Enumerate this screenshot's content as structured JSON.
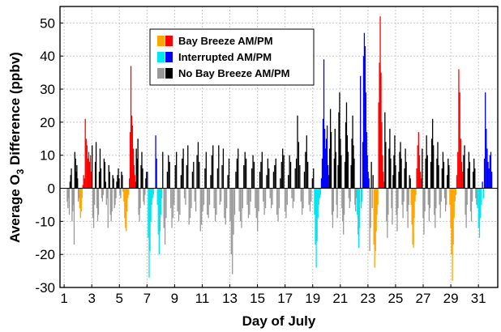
{
  "chart_data": {
    "type": "bar",
    "xlabel": "Day of July",
    "ylabel_parts": [
      "Average O",
      "3",
      " Difference (ppbv)"
    ],
    "xlim": [
      0.7,
      32.4
    ],
    "ylim": [
      -30,
      55
    ],
    "grid": true,
    "legend_position": "top-center",
    "x_ticks": [
      1,
      3,
      5,
      7,
      9,
      11,
      13,
      15,
      17,
      19,
      21,
      23,
      25,
      27,
      29,
      31
    ],
    "y_ticks": [
      -30,
      -20,
      -10,
      0,
      10,
      20,
      30,
      40,
      50
    ],
    "legend": [
      {
        "label": "Bay Breeze AM/PM",
        "series_am": "bay_am",
        "series_pm": "bay_pm"
      },
      {
        "label": "Interrupted AM/PM",
        "series_am": "int_am",
        "series_pm": "int_pm"
      },
      {
        "label": "No Bay Breeze AM/PM",
        "series_am": "no_am",
        "series_pm": "no_pm"
      }
    ],
    "colors": {
      "bay_am": "#ffa500",
      "bay_pm": "#ff0000",
      "int_am": "#00e5ee",
      "int_pm": "#0000ff",
      "no_am": "#999999",
      "no_pm": "#000000"
    },
    "hourly_segments": [
      {
        "series": "no",
        "x_start": 1.2,
        "x_end": 2.1,
        "values": [
          -4,
          -6,
          -3,
          -8,
          2,
          4,
          6,
          -10,
          -7,
          -5,
          -17,
          11,
          9,
          5,
          7,
          3,
          -4,
          -3
        ]
      },
      {
        "series": "bay",
        "x_start": 2.1,
        "x_end": 2.5,
        "values": [
          -6,
          -9,
          -7,
          -3,
          1,
          4,
          3
        ]
      },
      {
        "series": "bay",
        "x_start": 2.5,
        "x_end": 3.0,
        "values": [
          21,
          15,
          13,
          9,
          11,
          8,
          10,
          5
        ]
      },
      {
        "series": "no",
        "x_start": 3.0,
        "x_end": 5.3,
        "values": [
          13,
          -9,
          -12,
          -5,
          8,
          14,
          -6,
          -10,
          -8,
          5,
          12,
          6,
          -3,
          -4,
          -2,
          9,
          8,
          2,
          -5,
          -3,
          -12,
          7,
          5,
          -8,
          -10,
          -7,
          4,
          3,
          -6,
          -5,
          -3,
          2,
          4,
          6,
          3,
          -2,
          -3,
          5,
          4,
          -1
        ]
      },
      {
        "series": "bay",
        "x_start": 5.3,
        "x_end": 5.7,
        "values": [
          -4,
          -9,
          -12,
          -13,
          -7,
          -3,
          -2
        ]
      },
      {
        "series": "bay",
        "x_start": 5.7,
        "x_end": 6.2,
        "values": [
          3,
          17,
          37,
          22,
          19,
          12,
          7,
          4,
          2
        ]
      },
      {
        "series": "no",
        "x_start": 6.2,
        "x_end": 7.0,
        "values": [
          12,
          9,
          15,
          -8,
          -10,
          -6,
          7,
          11,
          6,
          -4,
          -5,
          -2,
          3,
          5
        ]
      },
      {
        "series": "int",
        "x_start": 7.0,
        "x_end": 7.5,
        "values": [
          5,
          -15,
          -27,
          -19,
          -10,
          -5,
          -3,
          -2
        ]
      },
      {
        "series": "int",
        "x_start": 7.6,
        "x_end": 8.1,
        "values": [
          16,
          9,
          -5,
          -14,
          -20,
          -13,
          -8,
          -3
        ]
      },
      {
        "series": "no",
        "x_start": 8.1,
        "x_end": 19.1,
        "values": [
          11,
          -12,
          -17,
          -9,
          5,
          10,
          8,
          -6,
          -12,
          -9,
          -5,
          7,
          11,
          -7,
          -10,
          -8,
          4,
          9,
          12,
          -3,
          -5,
          7,
          13,
          -11,
          -9,
          -6,
          5,
          8,
          -4,
          -7,
          10,
          14,
          8,
          -13,
          -11,
          -7,
          -5,
          6,
          11,
          -8,
          -9,
          -5,
          4,
          10,
          13,
          -6,
          -10,
          -8,
          6,
          13,
          -5,
          -4,
          7,
          12,
          -9,
          -11,
          -6,
          4,
          9,
          -10,
          -20,
          -26,
          -14,
          -8,
          5,
          9,
          12,
          -7,
          -10,
          -12,
          -6,
          7,
          11,
          9,
          -5,
          -9,
          -8,
          -4,
          6,
          10,
          8,
          -6,
          -9,
          -13,
          -7,
          5,
          8,
          11,
          -4,
          -8,
          -6,
          4,
          9,
          6,
          -3,
          -6,
          -5,
          5,
          7,
          9,
          -8,
          -10,
          -6,
          3,
          8,
          12,
          10,
          -7,
          -9,
          -5,
          4,
          10,
          8,
          -3,
          -6,
          -4,
          6,
          9,
          22,
          14,
          7,
          -4,
          -8,
          -6,
          5,
          11,
          16,
          8,
          -5,
          -7,
          -4,
          3,
          6
        ]
      },
      {
        "series": "int",
        "x_start": 19.1,
        "x_end": 19.6,
        "values": [
          -8,
          -17,
          -24,
          -16,
          -9,
          -5,
          -3,
          -2
        ]
      },
      {
        "series": "int",
        "x_start": 19.6,
        "x_end": 20.2,
        "values": [
          3,
          9,
          21,
          39,
          18,
          12,
          15,
          19,
          7,
          4
        ]
      },
      {
        "series": "no",
        "x_start": 20.2,
        "x_end": 22.2,
        "values": [
          12,
          24,
          17,
          -8,
          -12,
          -7,
          9,
          18,
          11,
          -5,
          -9,
          7,
          23,
          29,
          15,
          10,
          -6,
          -10,
          -14,
          -8,
          8,
          20,
          26,
          16,
          11,
          -3,
          -6,
          -4,
          7,
          15,
          22,
          13,
          9,
          -5,
          -7,
          -3
        ]
      },
      {
        "series": "int",
        "x_start": 22.2,
        "x_end": 22.6,
        "values": [
          -8,
          -14,
          -18,
          -12,
          34,
          -6,
          -4
        ]
      },
      {
        "series": "int",
        "x_start": 22.6,
        "x_end": 23.1,
        "values": [
          14,
          40,
          47,
          43,
          29,
          17,
          10,
          5,
          3
        ]
      },
      {
        "series": "no",
        "x_start": 23.1,
        "x_end": 23.4,
        "values": [
          -19,
          -12,
          8,
          -6,
          4
        ]
      },
      {
        "series": "bay",
        "x_start": 23.4,
        "x_end": 23.75,
        "values": [
          -17,
          -24,
          -19,
          -13,
          -8,
          -5
        ]
      },
      {
        "series": "bay",
        "x_start": 23.75,
        "x_end": 24.2,
        "values": [
          26,
          38,
          52,
          35,
          20,
          10,
          5,
          2
        ]
      },
      {
        "series": "no",
        "x_start": 24.2,
        "x_end": 26.1,
        "values": [
          23,
          14,
          -10,
          -15,
          -8,
          12,
          18,
          9,
          -6,
          -11,
          4,
          10,
          16,
          7,
          -8,
          -13,
          -6,
          5,
          11,
          14,
          9,
          -5,
          -9,
          -4,
          6,
          12,
          8,
          -7,
          -12,
          -5,
          4,
          3
        ]
      },
      {
        "series": "bay",
        "x_start": 26.1,
        "x_end": 26.5,
        "values": [
          -5,
          -11,
          -17,
          -18,
          -9,
          -4,
          -2
        ]
      },
      {
        "series": "bay",
        "x_start": 26.5,
        "x_end": 26.9,
        "values": [
          6,
          13,
          17,
          10,
          5,
          3
        ]
      },
      {
        "series": "no",
        "x_start": 26.9,
        "x_end": 28.9,
        "values": [
          12,
          -9,
          -14,
          -7,
          9,
          16,
          10,
          -5,
          -10,
          -6,
          8,
          15,
          21,
          13,
          -8,
          -12,
          -6,
          9,
          14,
          7,
          -5,
          -9,
          -4,
          6,
          11,
          8,
          -3,
          -7,
          -5,
          4,
          9,
          7
        ]
      },
      {
        "series": "bay",
        "x_start": 28.9,
        "x_end": 29.4,
        "values": [
          -5,
          -12,
          -20,
          -28,
          -17,
          -9,
          -4,
          -2
        ]
      },
      {
        "series": "bay",
        "x_start": 29.4,
        "x_end": 29.9,
        "values": [
          4,
          11,
          36,
          29,
          15,
          8,
          5
        ]
      },
      {
        "series": "no",
        "x_start": 29.9,
        "x_end": 30.9,
        "values": [
          10,
          13,
          -8,
          -12,
          -5,
          6,
          11,
          8,
          -7,
          -10,
          -4,
          5,
          9,
          6,
          -3,
          -5
        ]
      },
      {
        "series": "int",
        "x_start": 30.9,
        "x_end": 31.4,
        "values": [
          -6,
          -12,
          -15,
          -9,
          -5,
          2,
          -3
        ]
      },
      {
        "series": "int",
        "x_start": 31.4,
        "x_end": 32.0,
        "values": [
          9,
          29,
          18,
          12,
          8,
          6,
          10,
          11,
          5
        ]
      }
    ]
  }
}
